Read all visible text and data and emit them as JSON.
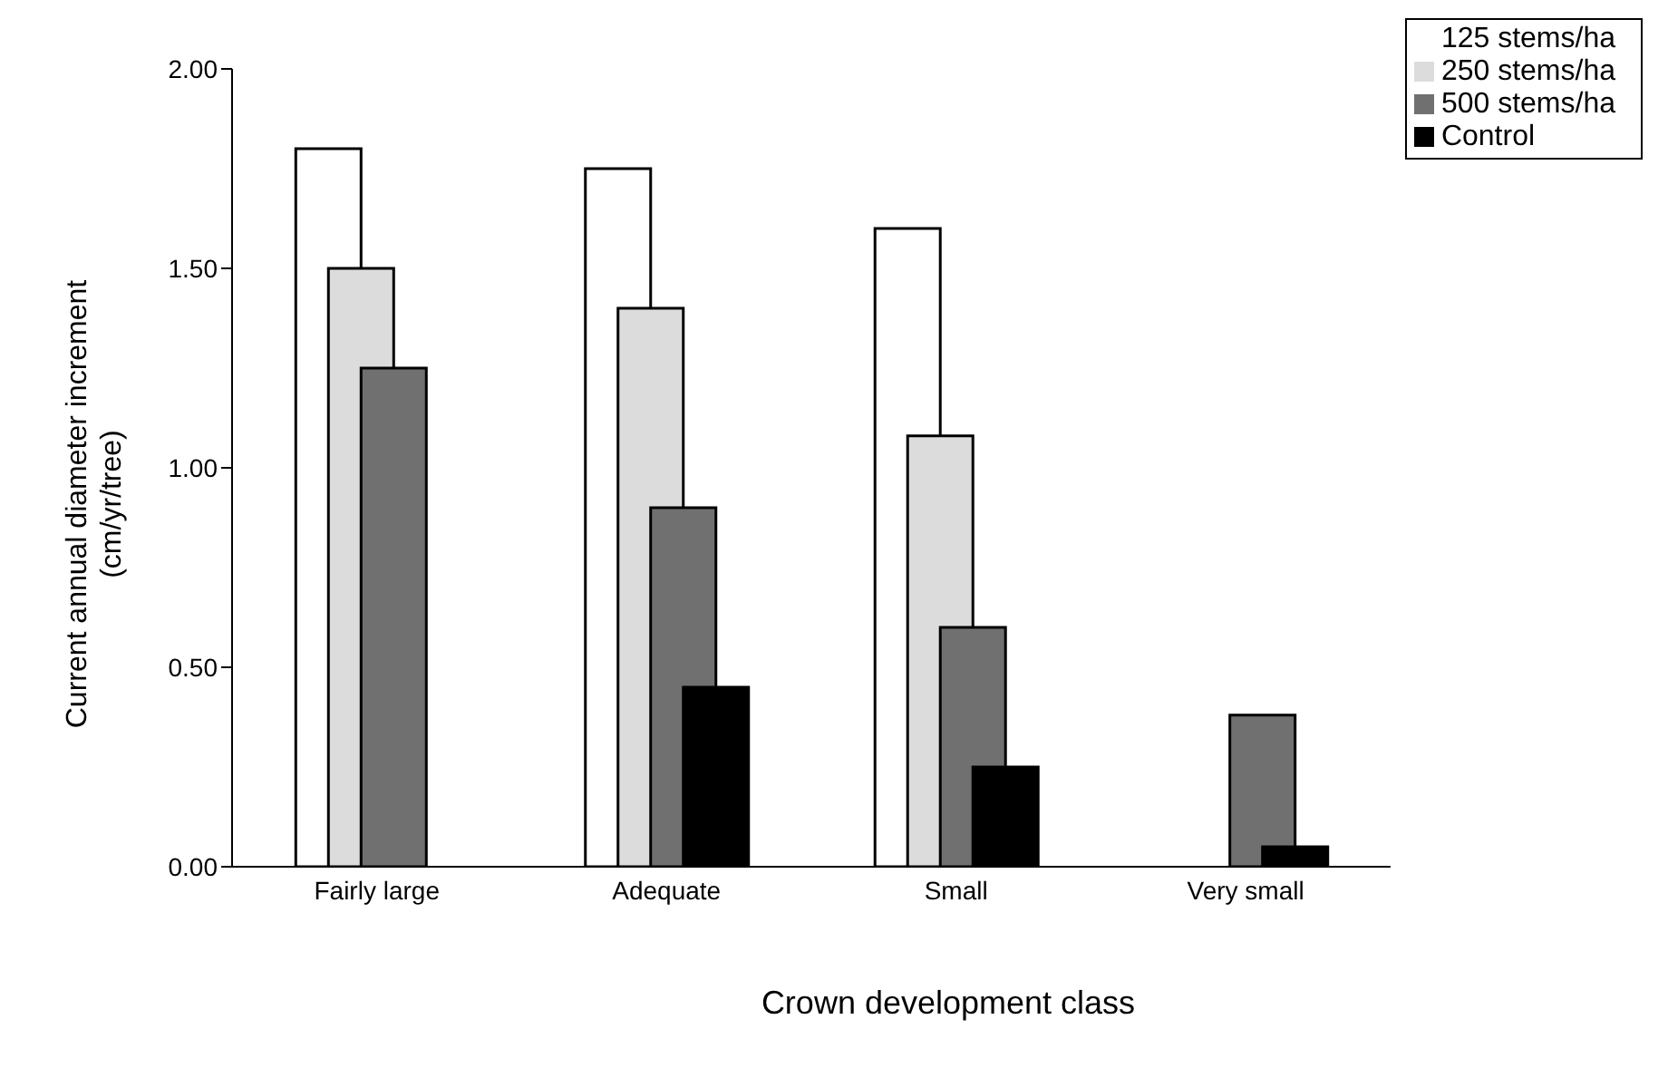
{
  "chart_data": {
    "type": "bar",
    "xlabel": "Crown development class",
    "ylabel": "Current annual diameter increment\n(cm/yr/tree)",
    "categories": [
      "Fairly large",
      "Adequate",
      "Small",
      "Very small"
    ],
    "series": [
      {
        "name": "125 stems/ha",
        "color": "#ffffff",
        "values": [
          1.8,
          1.75,
          1.6,
          null
        ]
      },
      {
        "name": "250 stems/ha",
        "color": "#dcdcdc",
        "values": [
          1.5,
          1.4,
          1.08,
          null
        ]
      },
      {
        "name": "500 stems/ha",
        "color": "#707070",
        "values": [
          1.25,
          0.9,
          0.6,
          0.38
        ]
      },
      {
        "name": "Control",
        "color": "#000000",
        "values": [
          null,
          0.45,
          0.25,
          0.05
        ]
      }
    ],
    "ylim": [
      0,
      2
    ],
    "yticks": [
      {
        "value": 0,
        "label": "0.00"
      },
      {
        "value": 0.5,
        "label": "0.50"
      },
      {
        "value": 1,
        "label": "1.00"
      },
      {
        "value": 1.5,
        "label": "1.50"
      },
      {
        "value": 2,
        "label": "2.00"
      }
    ],
    "grid": false,
    "legend": "top right"
  }
}
